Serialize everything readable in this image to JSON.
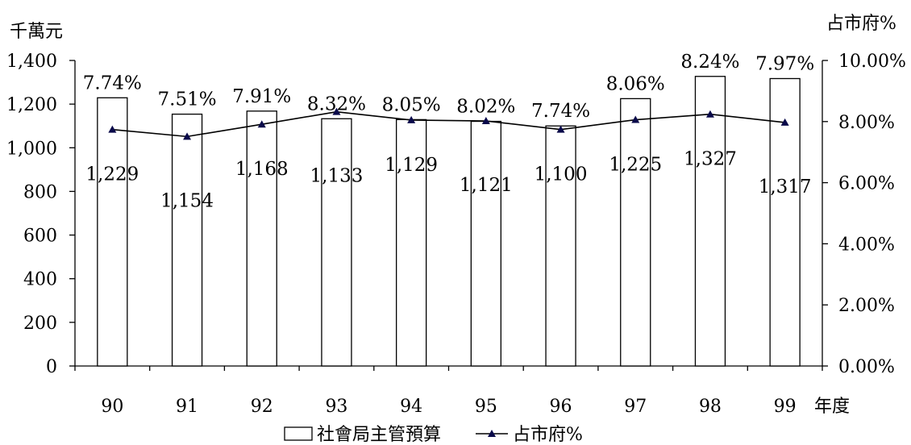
{
  "chart_data": {
    "type": "bar+line",
    "categories": [
      "90",
      "91",
      "92",
      "93",
      "94",
      "95",
      "96",
      "97",
      "98",
      "99"
    ],
    "x_unit": "年度",
    "left_axis": {
      "unit": "千萬元",
      "ylim": [
        0,
        1400
      ],
      "ticks": [
        "0",
        "200",
        "400",
        "600",
        "800",
        "1,000",
        "1,200",
        "1,400"
      ]
    },
    "right_axis": {
      "unit": "占市府%",
      "ylim": [
        0,
        10
      ],
      "ticks": [
        "0.00%",
        "2.00%",
        "4.00%",
        "6.00%",
        "8.00%",
        "10.00%"
      ]
    },
    "series": [
      {
        "name": "社會局主管預算",
        "kind": "bar",
        "axis": "left",
        "values": [
          1229,
          1154,
          1168,
          1133,
          1129,
          1121,
          1100,
          1225,
          1327,
          1317
        ],
        "labels": [
          "1,229",
          "1,154",
          "1,168",
          "1,133",
          "1,129",
          "1,121",
          "1,100",
          "1,225",
          "1,327",
          "1,317"
        ]
      },
      {
        "name": "占市府%",
        "kind": "line",
        "axis": "right",
        "values": [
          7.74,
          7.51,
          7.91,
          8.32,
          8.05,
          8.02,
          7.74,
          8.06,
          8.24,
          7.97
        ],
        "labels": [
          "7.74%",
          "7.51%",
          "7.91%",
          "8.32%",
          "8.05%",
          "8.02%",
          "7.74%",
          "8.06%",
          "8.24%",
          "7.97%"
        ]
      }
    ],
    "legend": [
      "社會局主管預算",
      "占市府%"
    ],
    "legend_position": "bottom",
    "grid": false,
    "colors": {
      "bar_fill": "#ffffff",
      "line": "#000000",
      "marker": "#0a0a4a"
    }
  }
}
